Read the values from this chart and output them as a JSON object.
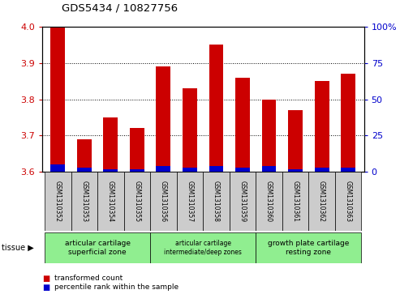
{
  "title": "GDS5434 / 10827756",
  "samples": [
    "GSM1310352",
    "GSM1310353",
    "GSM1310354",
    "GSM1310355",
    "GSM1310356",
    "GSM1310357",
    "GSM1310358",
    "GSM1310359",
    "GSM1310360",
    "GSM1310361",
    "GSM1310362",
    "GSM1310363"
  ],
  "red_values": [
    4.0,
    3.69,
    3.75,
    3.72,
    3.89,
    3.83,
    3.95,
    3.86,
    3.8,
    3.77,
    3.85,
    3.87
  ],
  "blue_percentile": [
    5,
    3,
    2,
    2,
    4,
    3,
    4,
    3,
    4,
    2,
    3,
    3
  ],
  "ymin": 3.6,
  "ymax": 4.0,
  "y_ticks": [
    3.6,
    3.7,
    3.8,
    3.9,
    4.0
  ],
  "right_y_ticks": [
    0,
    25,
    50,
    75,
    100
  ],
  "bar_color": "#cc0000",
  "blue_color": "#0000cc",
  "tissue_groups": [
    {
      "label": "articular cartilage\nsuperficial zone",
      "start": 0,
      "end": 3
    },
    {
      "label": "articular cartilage\nintermediate/deep zones",
      "start": 4,
      "end": 7
    },
    {
      "label": "growth plate cartilage\nresting zone",
      "start": 8,
      "end": 11
    }
  ],
  "legend_red": "transformed count",
  "legend_blue": "percentile rank within the sample",
  "left_y_color": "#cc0000",
  "right_y_color": "#0000cc",
  "bar_width": 0.55,
  "tissue_green": "#90ee90",
  "sample_gray": "#cccccc",
  "bg_white": "#ffffff"
}
